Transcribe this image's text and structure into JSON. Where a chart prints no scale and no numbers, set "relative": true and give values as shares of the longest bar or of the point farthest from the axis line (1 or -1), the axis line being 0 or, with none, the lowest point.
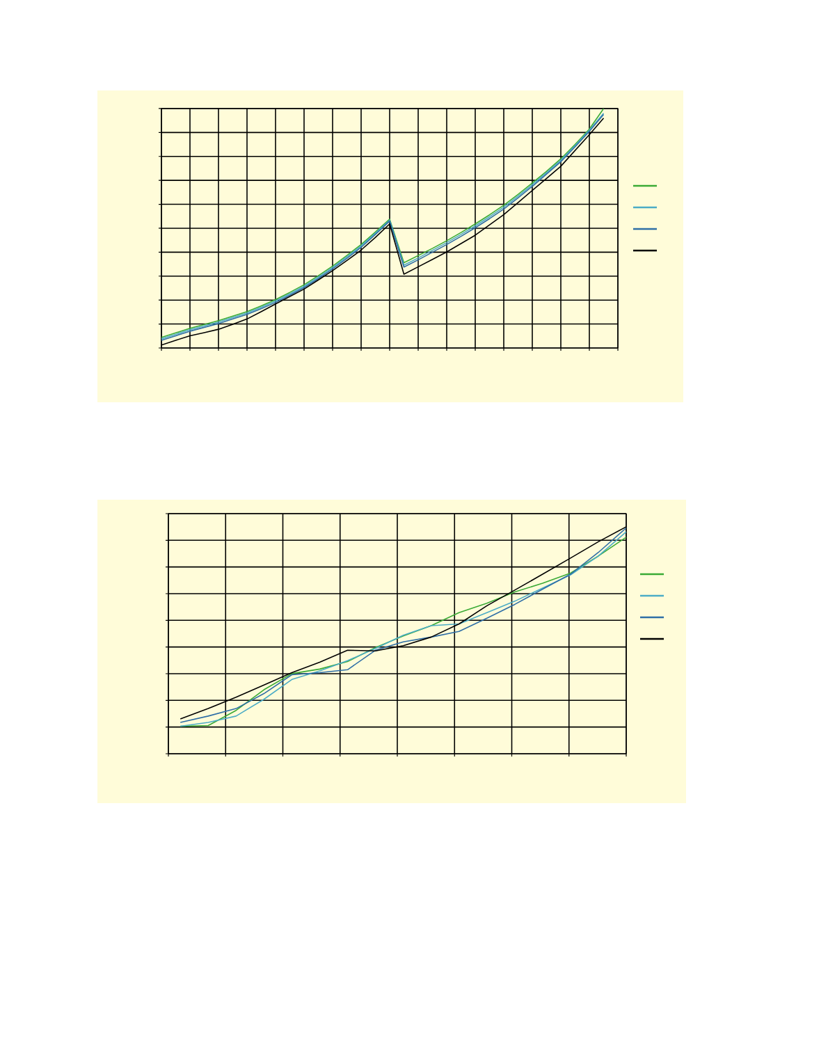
{
  "chart_data": [
    {
      "type": "line",
      "relative": true,
      "grid": true,
      "tick_labels": false,
      "marker": "none",
      "line_style": "solid",
      "categories": [
        null,
        null,
        null,
        null,
        null,
        null,
        null,
        null,
        null,
        null,
        null,
        null,
        null,
        null,
        null,
        null,
        null,
        null,
        null,
        null,
        null,
        null,
        null,
        null,
        null,
        null,
        null,
        null,
        null,
        null,
        null,
        null,
        null
      ],
      "series": [
        {
          "color": "#3aaa35",
          "values": [
            0.044,
            0.063,
            0.082,
            0.098,
            0.114,
            0.133,
            0.152,
            0.176,
            0.202,
            0.232,
            0.264,
            0.302,
            0.342,
            0.386,
            0.432,
            0.484,
            0.538,
            0.356,
            0.386,
            0.416,
            0.448,
            0.482,
            0.518,
            0.556,
            0.596,
            0.641,
            0.689,
            0.738,
            0.79,
            0.85,
            0.914,
            1,
            null
          ]
        },
        {
          "color": "#4bacc6",
          "values": [
            0.038,
            0.057,
            0.076,
            0.092,
            0.108,
            0.127,
            0.146,
            0.17,
            0.196,
            0.226,
            0.258,
            0.296,
            0.336,
            0.38,
            0.426,
            0.479,
            0.534,
            0.346,
            0.376,
            0.408,
            0.44,
            0.474,
            0.51,
            0.548,
            0.588,
            0.634,
            0.682,
            0.732,
            0.784,
            0.845,
            0.91,
            0.98,
            null
          ]
        },
        {
          "color": "#2e6ea6",
          "values": [
            0.032,
            0.051,
            0.07,
            0.086,
            0.102,
            0.121,
            0.14,
            0.164,
            0.19,
            0.22,
            0.252,
            0.29,
            0.33,
            0.374,
            0.42,
            0.474,
            0.53,
            0.338,
            0.368,
            0.4,
            0.432,
            0.466,
            0.502,
            0.54,
            0.58,
            0.627,
            0.675,
            0.726,
            0.778,
            0.84,
            0.905,
            0.975,
            null
          ]
        },
        {
          "color": "#000000",
          "values": [
            0.012,
            0.032,
            0.051,
            0.064,
            0.078,
            0.099,
            0.121,
            0.152,
            0.184,
            0.215,
            0.246,
            0.284,
            0.323,
            0.365,
            0.409,
            0.462,
            0.518,
            0.308,
            0.339,
            0.37,
            0.401,
            0.436,
            0.471,
            0.514,
            0.557,
            0.607,
            0.658,
            0.708,
            0.759,
            0.825,
            0.891,
            0.96,
            null
          ]
        }
      ]
    },
    {
      "type": "line",
      "relative": true,
      "grid": true,
      "tick_labels": false,
      "marker": "none",
      "line_style": "solid",
      "categories": [
        null,
        null,
        null,
        null,
        null,
        null,
        null,
        null,
        null,
        null,
        null,
        null,
        null,
        null,
        null,
        null,
        null
      ],
      "series": [
        {
          "color": "#3aaa35",
          "values": [
            0.121,
            0.124,
            0.191,
            0.282,
            0.353,
            0.373,
            0.406,
            0.468,
            0.519,
            0.564,
            0.622,
            0.663,
            0.713,
            0.751,
            0.796,
            0.871,
            0.954
          ]
        },
        {
          "color": "#4bacc6",
          "values": [
            0.121,
            0.138,
            0.166,
            0.24,
            0.327,
            0.365,
            0.41,
            0.464,
            0.522,
            0.564,
            0.572,
            0.622,
            0.672,
            0.73,
            0.788,
            0.871,
            0.978
          ]
        },
        {
          "color": "#2e6ea6",
          "values": [
            0.138,
            0.166,
            0.199,
            0.265,
            0.348,
            0.357,
            0.37,
            0.456,
            0.493,
            0.514,
            0.539,
            0.597,
            0.658,
            0.725,
            0.791,
            0.887,
            0.995
          ]
        },
        {
          "color": "#000000",
          "values": [
            0.153,
            0.199,
            0.249,
            0.303,
            0.357,
            0.403,
            0.456,
            0.453,
            0.476,
            0.514,
            0.572,
            0.652,
            0.721,
            0.791,
            0.862,
            0.934,
            1
          ]
        }
      ]
    }
  ]
}
